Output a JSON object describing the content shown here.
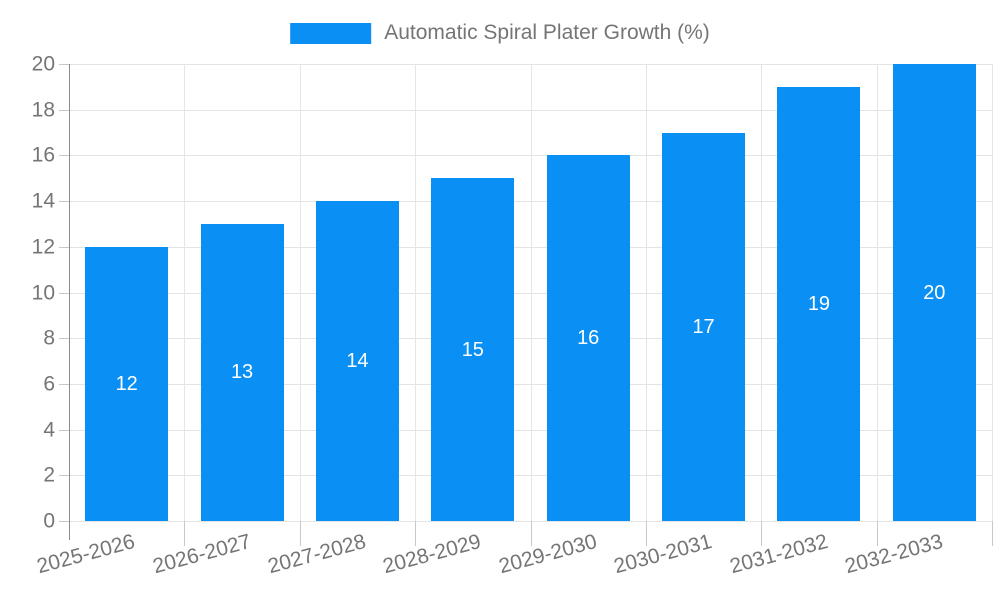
{
  "chart_data": {
    "type": "bar",
    "title": "Automatic Spiral Plater Growth (%)",
    "legend": [
      "Automatic Spiral Plater Growth (%)"
    ],
    "legend_position": "top-center",
    "categories": [
      "2025-2026",
      "2026-2027",
      "2027-2028",
      "2028-2029",
      "2029-2030",
      "2030-2031",
      "2031-2032",
      "2032-2033"
    ],
    "values": [
      12,
      13,
      14,
      15,
      16,
      17,
      19,
      20
    ],
    "yticks": [
      0,
      2,
      4,
      6,
      8,
      10,
      12,
      14,
      16,
      18,
      20
    ],
    "ylim": [
      0,
      20
    ],
    "xlabel": "",
    "ylabel": "",
    "grid": true,
    "bar_label_position": "inside-center",
    "x_tick_label_rotation_deg": -15
  },
  "colors": {
    "bar": "#0a8ff4",
    "bar_value_label": "#ffffff",
    "axis_text": "#757575",
    "grid_line": "#e4e4e4",
    "tick_line": "#c8c8c8",
    "axis_line": "#8c8c8c",
    "background": "#ffffff"
  }
}
